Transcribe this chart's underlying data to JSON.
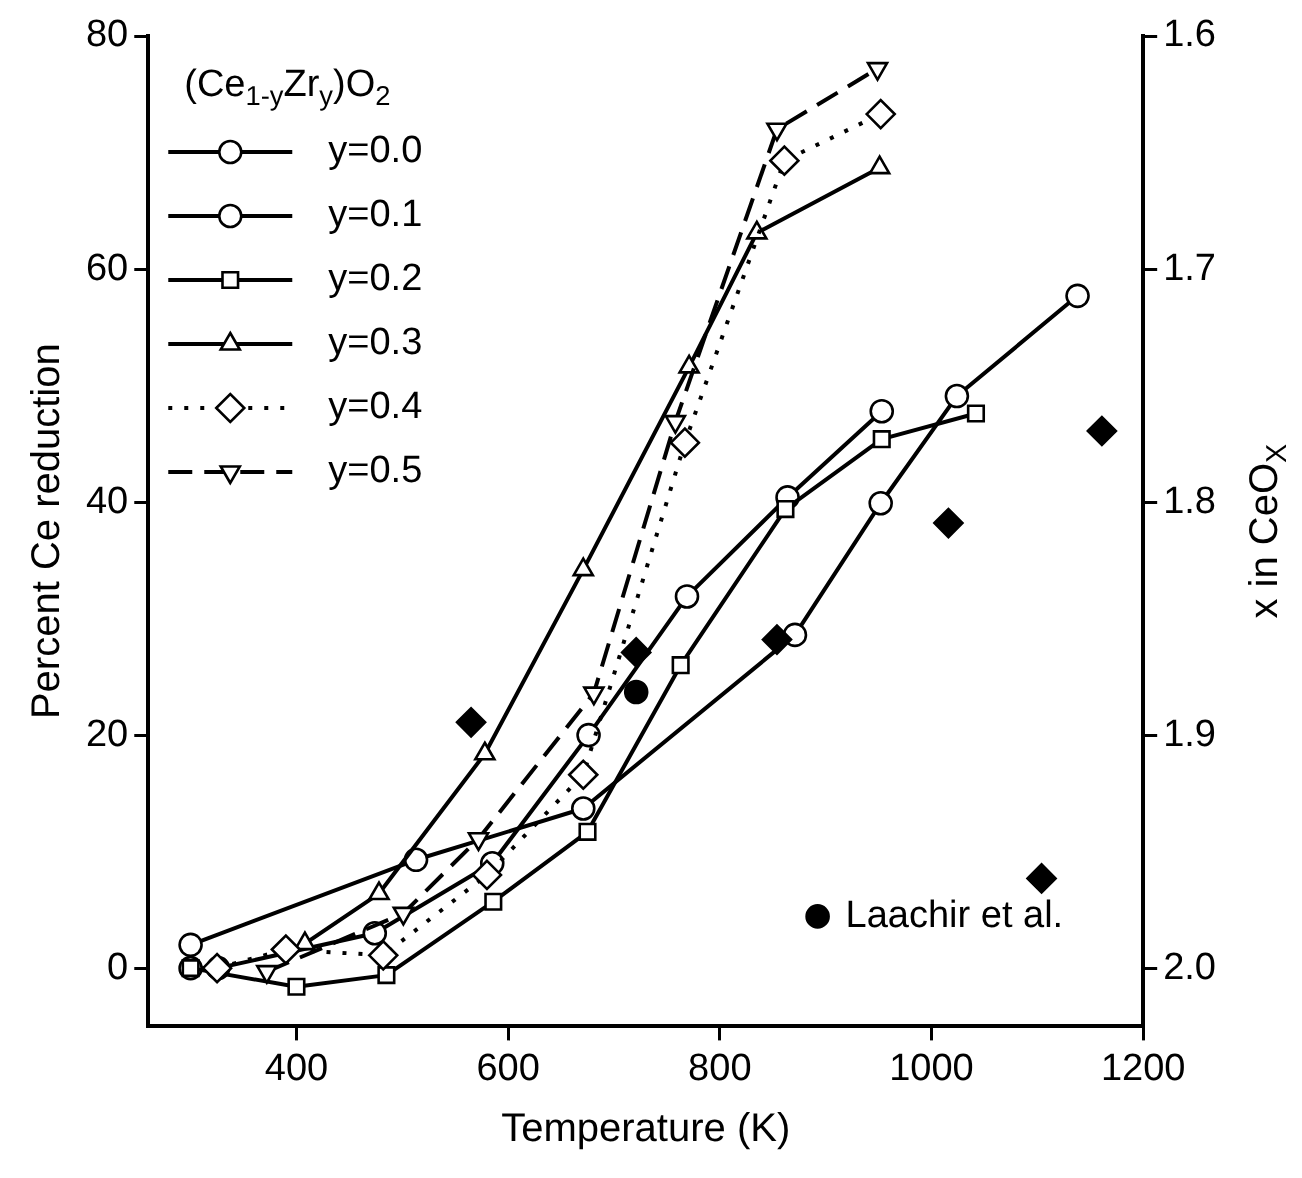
{
  "chart_data": {
    "type": "line",
    "xlabel": "Temperature (K)",
    "ylabel": "Percent Ce reduction",
    "y2label": "x in CeO$_{X}$",
    "legend_title": "(Ce$_{1-y}$Zr$_{y}$)O$_{2}$",
    "xlim": [
      260,
      1200
    ],
    "xticks": [
      400,
      600,
      800,
      1000,
      1200
    ],
    "ylim": [
      -5,
      80
    ],
    "yticks": [
      0,
      20,
      40,
      60,
      80
    ],
    "y2lim": [
      2.025,
      1.6
    ],
    "y2ticks": [
      {
        "value": 2.0,
        "label": "2.0"
      },
      1.9,
      1.8,
      1.7,
      1.6
    ],
    "grid": false,
    "legend": "top left",
    "series": [
      {
        "name": "y=0.0",
        "color": "#000000",
        "marker": "circle",
        "line_style": "solid",
        "x": [
          300,
          513,
          671,
          871,
          952,
          1024,
          1138
        ],
        "values": [
          2,
          9.3,
          13.7,
          28.6,
          39.9,
          49.1,
          57.7
        ]
      },
      {
        "name": "y=0.1",
        "color": "#000000",
        "marker": "circle",
        "line_style": "solid",
        "x": [
          300,
          326,
          474,
          585,
          676,
          769,
          864,
          953
        ],
        "values": [
          0,
          0,
          3,
          9,
          20,
          31.9,
          40.4,
          47.8
        ]
      },
      {
        "name": "y=0.2",
        "color": "#000000",
        "marker": "square",
        "line_style": "solid",
        "x": [
          300,
          400,
          485,
          586,
          675,
          763,
          862,
          953,
          1042
        ],
        "values": [
          0,
          -1.6,
          -0.6,
          5.7,
          11.7,
          26,
          39.4,
          45.4,
          47.6
        ]
      },
      {
        "name": "y=0.3",
        "color": "#000000",
        "marker": "triangle",
        "line_style": "solid",
        "x": [
          408,
          478,
          578,
          671,
          771,
          835,
          951
        ],
        "values": [
          2.1,
          6.4,
          18.4,
          34.2,
          51.6,
          63.1,
          68.7
        ]
      },
      {
        "name": "y=0.4",
        "color": "#000000",
        "marker": "diamond",
        "line_style": "dotted",
        "x": [
          325,
          390,
          482,
          580,
          671,
          767,
          861,
          952
        ],
        "values": [
          0,
          1.6,
          1.1,
          8,
          16.6,
          45.1,
          69.3,
          73.3
        ]
      },
      {
        "name": "y=0.5",
        "color": "#000000",
        "marker": "triangle_down",
        "line_style": "dashed",
        "x": [
          372,
          501,
          572,
          681,
          758,
          854,
          949
        ],
        "values": [
          -0.3,
          4.7,
          11.1,
          23.6,
          46.9,
          72,
          77.2
        ]
      },
      {
        "type": "scatter",
        "color": "#000000",
        "marker": "diamond",
        "x": [
          565,
          721,
          854,
          1016,
          1104,
          1161
        ],
        "values": [
          21.1,
          27.1,
          28.2,
          38.2,
          7.7,
          46.1
        ]
      },
      {
        "type": "scatter",
        "name": "Laachir et al.",
        "color": "#000000",
        "marker": "circle",
        "x": [
          721
        ],
        "values": [
          23.7
        ]
      }
    ]
  }
}
